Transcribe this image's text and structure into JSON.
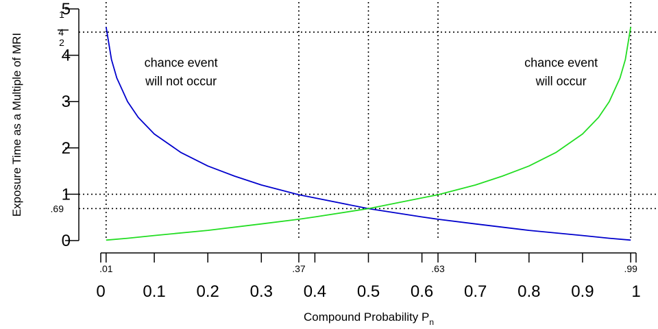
{
  "chart_data": {
    "type": "line",
    "title": "",
    "xlabel": "Compound Probability P",
    "xlabel_sub": "n",
    "ylabel": "Exposure Time as a Multiple of MRI",
    "xlim": [
      0,
      1
    ],
    "ylim": [
      0,
      5
    ],
    "x_ticks": [
      0,
      0.1,
      0.2,
      0.3,
      0.4,
      0.5,
      0.6,
      0.7,
      0.8,
      0.9,
      1
    ],
    "x_tick_labels": [
      "0",
      "0.1",
      "0.2",
      "0.3",
      "0.4",
      "0.5",
      "0.6",
      "0.7",
      "0.8",
      "0.9",
      "1"
    ],
    "x_minor_ticks": [
      0.01,
      0.37,
      0.63,
      0.99
    ],
    "x_minor_tick_labels": [
      ".01",
      ".37",
      ".63",
      ".99"
    ],
    "y_ticks": [
      0,
      1,
      2,
      3,
      4,
      5
    ],
    "y_tick_labels": [
      "0",
      "1",
      "2",
      "3",
      "4",
      "5"
    ],
    "y_extra_ticks": [
      0.69,
      4.5
    ],
    "y_extra_tick_labels": [
      ".69",
      "4"
    ],
    "y_fraction_label": {
      "numerator": "1",
      "denominator": "2"
    },
    "reference_lines": {
      "vertical": [
        0.01,
        0.37,
        0.5,
        0.63,
        0.99
      ],
      "horizontal": [
        0.69,
        1,
        4.5
      ]
    },
    "grid": false,
    "series": [
      {
        "color": "#0000cc",
        "x": [
          0.01,
          0.02,
          0.03,
          0.05,
          0.07,
          0.1,
          0.15,
          0.2,
          0.25,
          0.3,
          0.37,
          0.4,
          0.5,
          0.6,
          0.63,
          0.7,
          0.8,
          0.9,
          0.95,
          0.99
        ],
        "y": [
          4.61,
          3.91,
          3.51,
          3.0,
          2.66,
          2.3,
          1.9,
          1.61,
          1.39,
          1.2,
          0.99,
          0.92,
          0.69,
          0.51,
          0.46,
          0.36,
          0.22,
          0.11,
          0.05,
          0.01
        ]
      },
      {
        "color": "#22dd22",
        "x": [
          0.01,
          0.05,
          0.1,
          0.2,
          0.3,
          0.37,
          0.4,
          0.5,
          0.6,
          0.63,
          0.7,
          0.75,
          0.8,
          0.85,
          0.9,
          0.93,
          0.95,
          0.97,
          0.98,
          0.99
        ],
        "y": [
          0.01,
          0.05,
          0.11,
          0.22,
          0.36,
          0.46,
          0.51,
          0.69,
          0.92,
          0.99,
          1.2,
          1.39,
          1.61,
          1.9,
          2.3,
          2.66,
          3.0,
          3.51,
          3.91,
          4.61
        ]
      }
    ],
    "annotations": [
      {
        "lines": [
          "chance event",
          "will not occur"
        ],
        "x": 0.15,
        "y": 3.75
      },
      {
        "lines": [
          "chance event",
          "will occur"
        ],
        "x": 0.86,
        "y": 3.75
      }
    ]
  }
}
